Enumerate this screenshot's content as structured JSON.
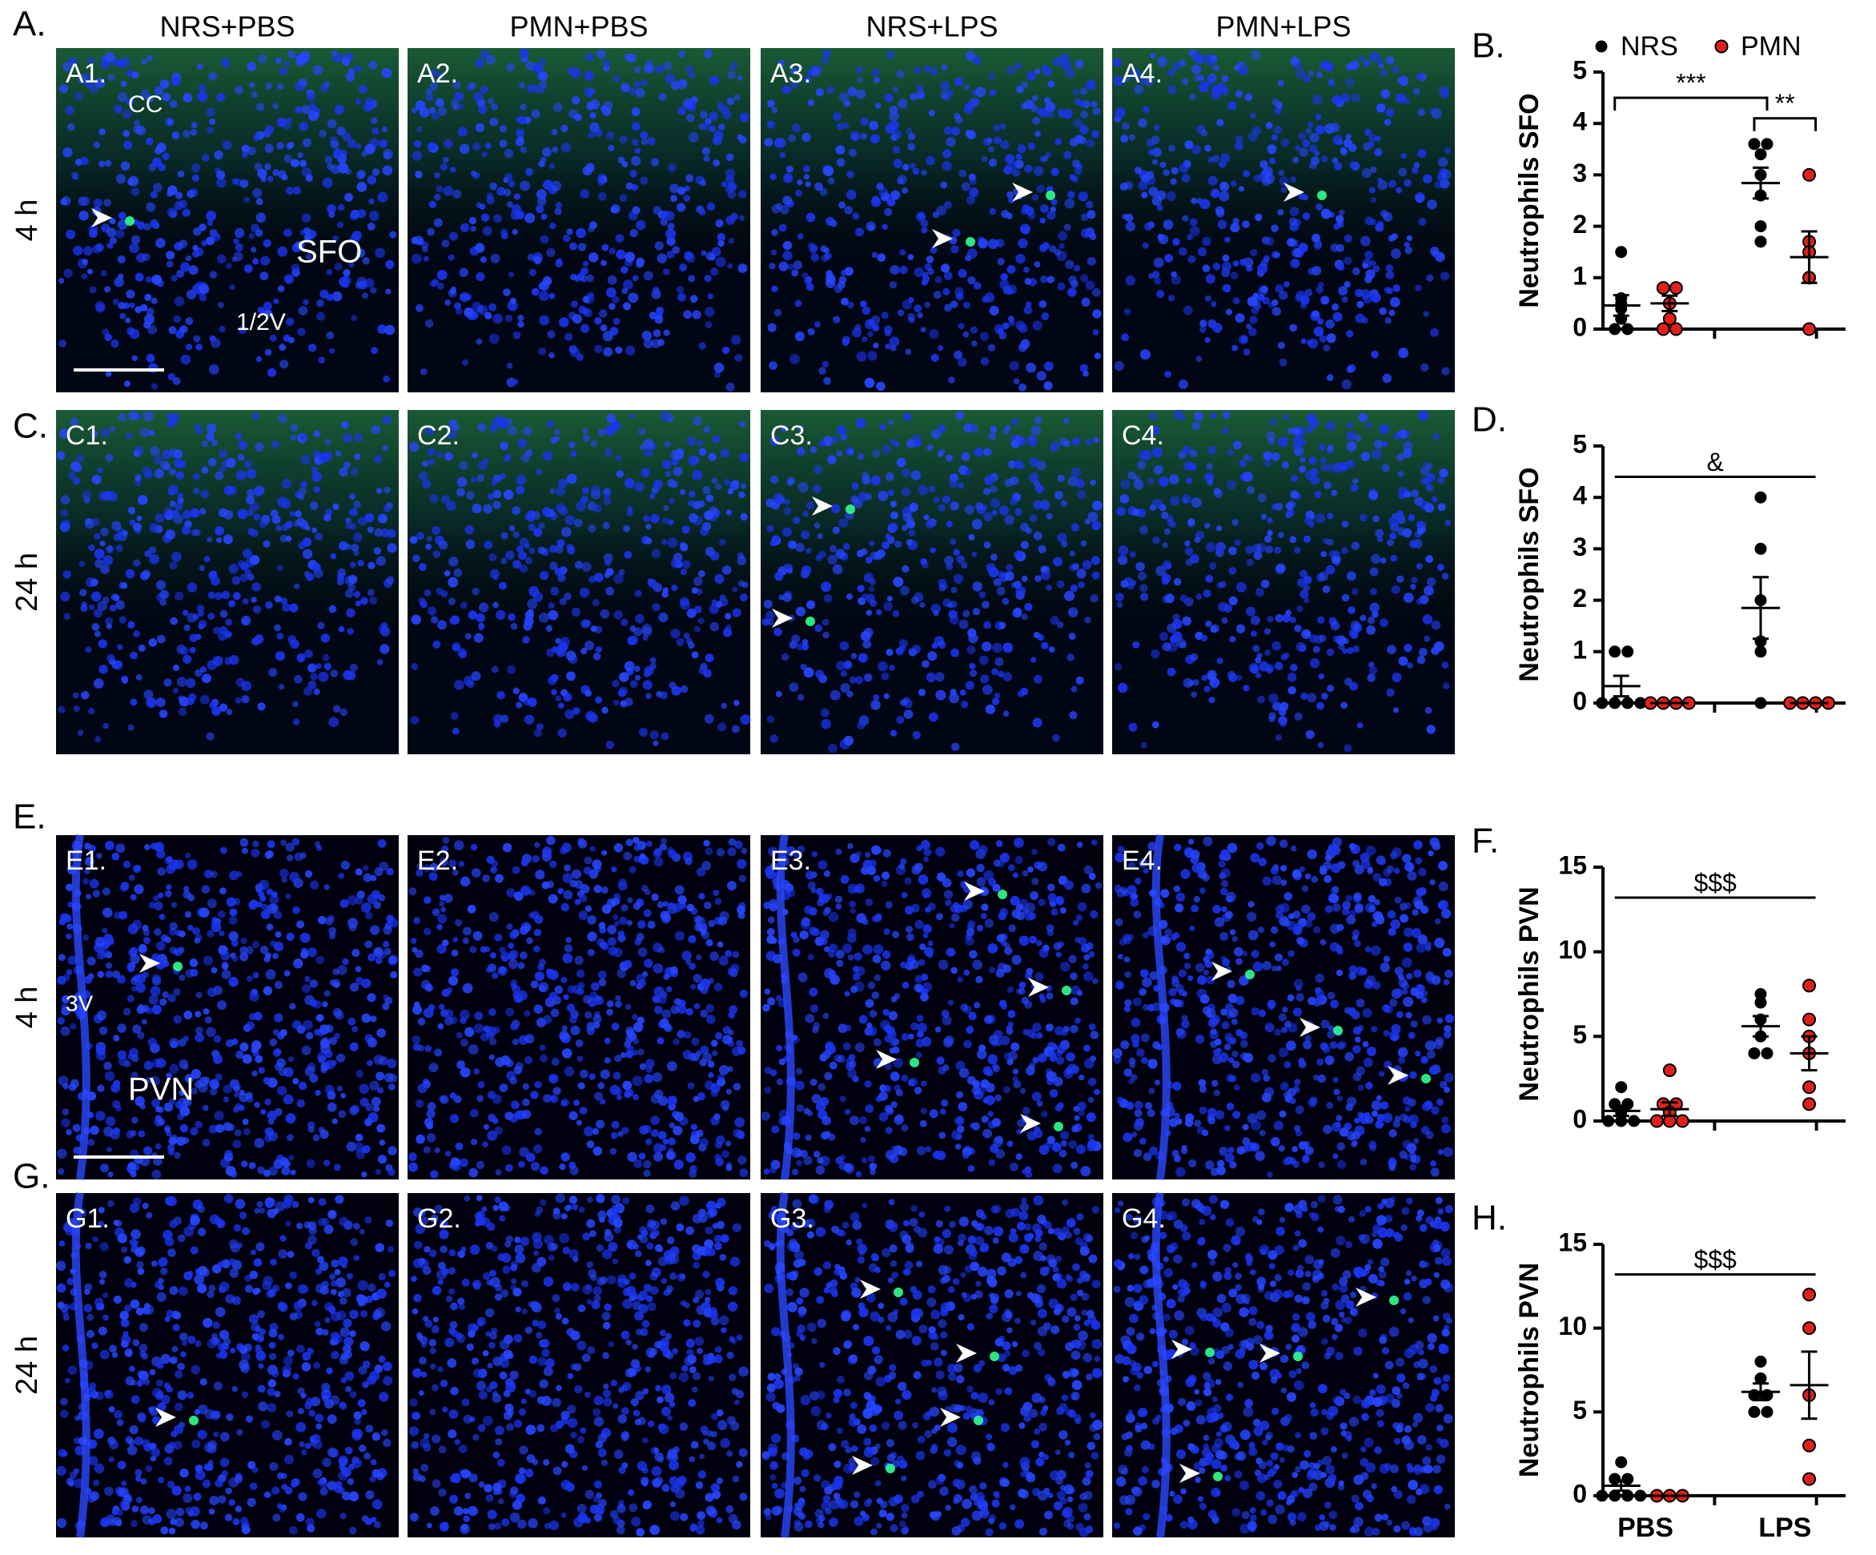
{
  "panel_letters": [
    "A.",
    "C.",
    "E.",
    "G."
  ],
  "column_headers": [
    "NRS+PBS",
    "PMN+PBS",
    "NRS+LPS",
    "PMN+LPS"
  ],
  "row_labels": [
    "4 h",
    "24 h",
    "4 h",
    "24 h"
  ],
  "image_labels": [
    [
      "A1.",
      "A2.",
      "A3.",
      "A4."
    ],
    [
      "C1.",
      "C2.",
      "C3.",
      "C4."
    ],
    [
      "E1.",
      "E2.",
      "E3.",
      "E4."
    ],
    [
      "G1.",
      "G2.",
      "G3.",
      "G4."
    ]
  ],
  "image_annotations": [
    "CC",
    "SFO",
    "1/2V",
    "3V",
    "PVN"
  ],
  "chart_data": [
    {
      "type": "dot",
      "panel_label": "B.",
      "y_label": "Neutrophils SFO",
      "categories": [
        null,
        null
      ],
      "ylim": [
        0,
        5
      ],
      "yticks": [
        0,
        1,
        2,
        3,
        4,
        5
      ],
      "legend": "top",
      "series": [
        {
          "name": "NRS",
          "color": "#000000",
          "values": [
            [
              1.5,
              0.6,
              0.5,
              0.4,
              0.2,
              0,
              0
            ],
            [
              3.6,
              3.6,
              3.4,
              3.0,
              2.6,
              2.0,
              1.7
            ]
          ],
          "means": [
            0.46,
            2.84
          ],
          "sems": [
            0.2,
            0.3
          ]
        },
        {
          "name": "PMN",
          "color": "#e0201b",
          "values": [
            [
              0.8,
              0.8,
              0.5,
              0.2,
              0,
              0
            ],
            [
              3.0,
              1.7,
              1.5,
              1.0,
              0
            ]
          ],
          "means": [
            0.5,
            1.4
          ],
          "sems": [
            0.15,
            0.5
          ]
        }
      ],
      "annotations": [
        "***",
        "**"
      ]
    },
    {
      "type": "dot",
      "panel_label": "D.",
      "y_label": "Neutrophils SFO",
      "categories": [
        null,
        null
      ],
      "ylim": [
        0,
        5
      ],
      "yticks": [
        0,
        1,
        2,
        3,
        4,
        5
      ],
      "series": [
        {
          "color": "#000000",
          "values": [
            [
              1,
              1,
              0,
              0,
              0,
              0
            ],
            [
              4,
              3,
              2,
              1.2,
              1,
              0
            ]
          ],
          "means": [
            0.33,
            1.85
          ],
          "sems": [
            0.2,
            0.6
          ]
        },
        {
          "color": "#e0201b",
          "values": [
            [
              0,
              0,
              0,
              0
            ],
            [
              0,
              0,
              0,
              0
            ]
          ],
          "means": [
            0,
            0
          ],
          "sems": [
            0,
            0
          ]
        }
      ],
      "annotations": [
        "&"
      ]
    },
    {
      "type": "dot",
      "panel_label": "F.",
      "y_label": "Neutrophils PVN",
      "categories": [
        null,
        null
      ],
      "ylim": [
        0,
        15
      ],
      "yticks": [
        0,
        5,
        10,
        15
      ],
      "series": [
        {
          "color": "#000000",
          "values": [
            [
              2,
              1,
              1,
              0.5,
              0,
              0,
              0
            ],
            [
              7.5,
              7,
              6,
              5,
              4,
              4
            ]
          ],
          "means": [
            0.6,
            5.6
          ],
          "sems": [
            0.3,
            0.6
          ]
        },
        {
          "color": "#e0201b",
          "values": [
            [
              3,
              1,
              1,
              0.5,
              0,
              0,
              0
            ],
            [
              8,
              6,
              5,
              4,
              2,
              1
            ]
          ],
          "means": [
            0.7,
            4
          ],
          "sems": [
            0.4,
            1
          ]
        }
      ],
      "annotations": [
        "$$$"
      ]
    },
    {
      "type": "dot",
      "panel_label": "H.",
      "y_label": "Neutrophils PVN",
      "categories": [
        "PBS",
        "LPS"
      ],
      "ylim": [
        0,
        15
      ],
      "yticks": [
        0,
        5,
        10,
        15
      ],
      "series": [
        {
          "color": "#000000",
          "values": [
            [
              2,
              1,
              1,
              0,
              0,
              0,
              0
            ],
            [
              8,
              7,
              6,
              6,
              5,
              5
            ]
          ],
          "means": [
            0.6,
            6.2
          ],
          "sems": [
            0.3,
            0.5
          ]
        },
        {
          "color": "#e0201b",
          "values": [
            [
              0,
              0,
              0
            ],
            [
              12,
              10,
              6,
              3,
              1
            ]
          ],
          "means": [
            0,
            6.6
          ],
          "sems": [
            0,
            2
          ]
        }
      ],
      "annotations": [
        "$$$"
      ]
    }
  ]
}
